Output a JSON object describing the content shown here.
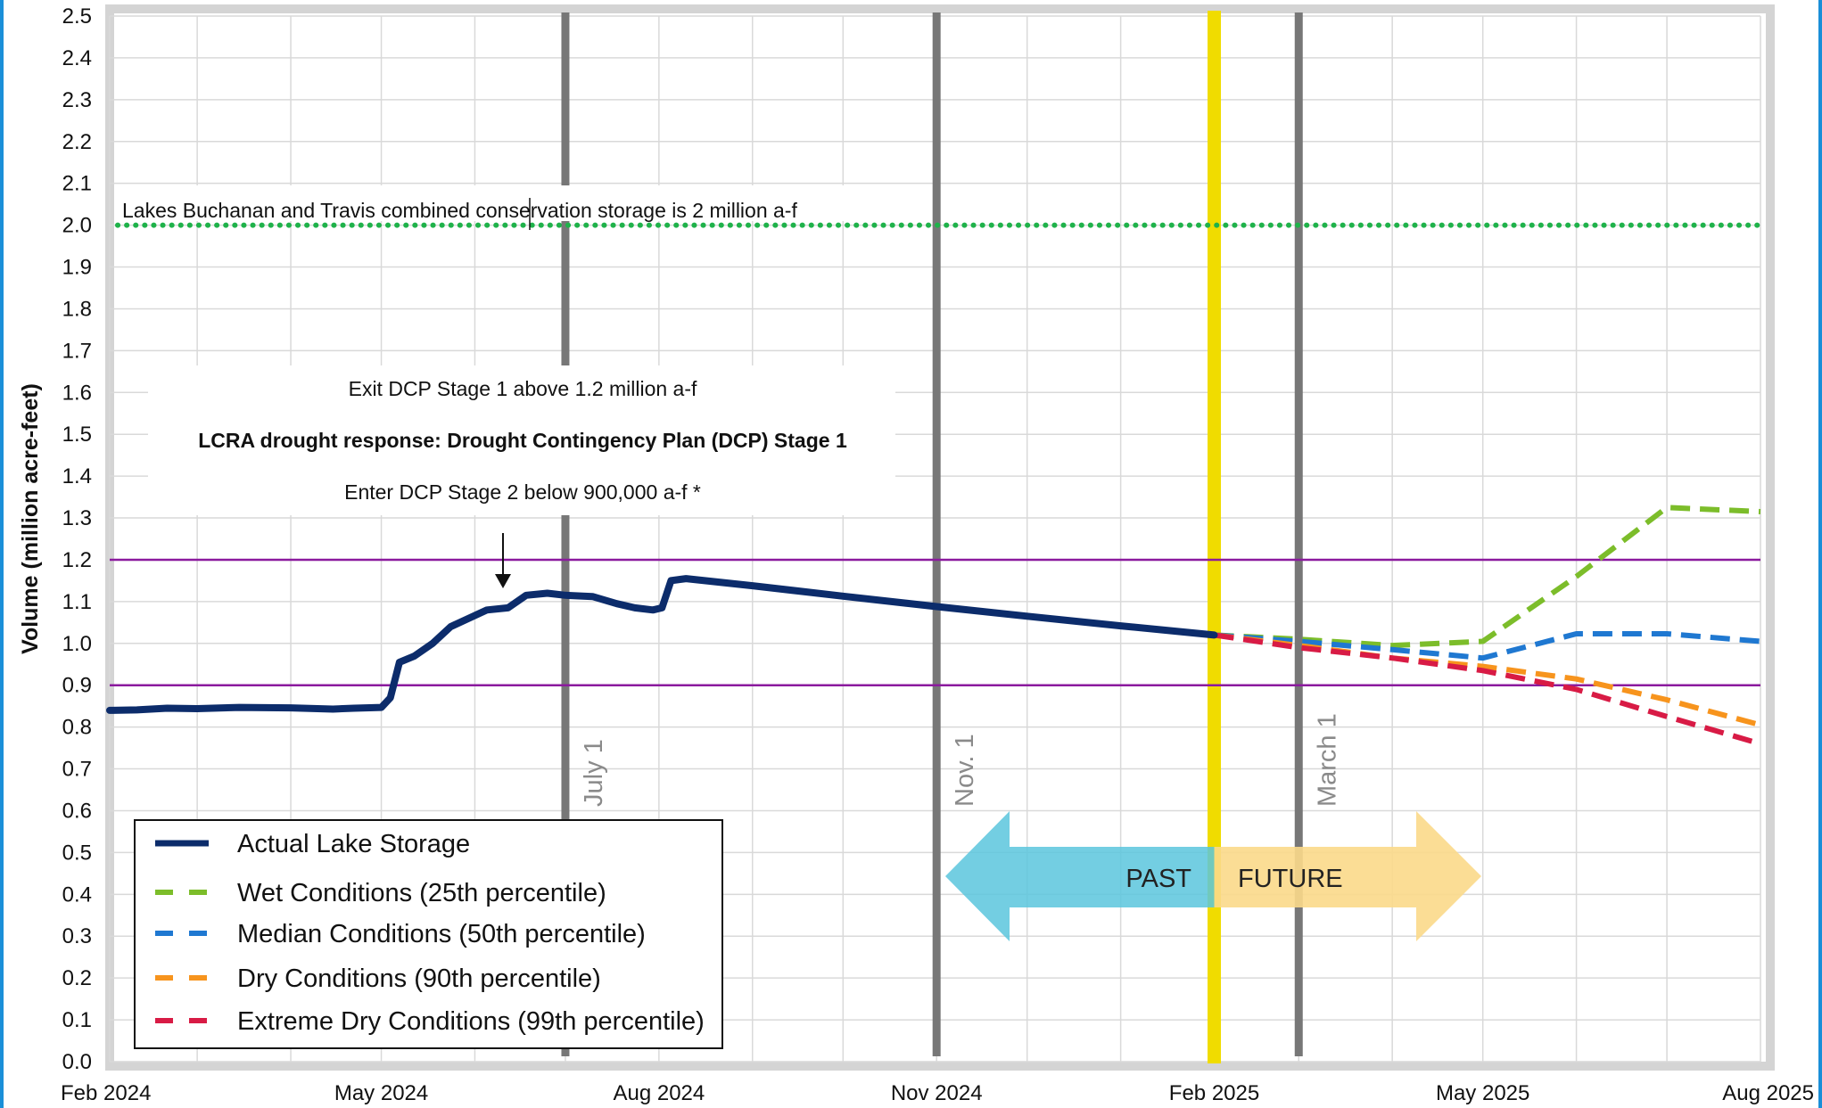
{
  "chart_data": {
    "type": "line",
    "ylabel": "Volume  (million acre-feet)",
    "ylim": [
      0,
      2.5
    ],
    "yticks": [
      "0.0",
      "0.1",
      "0.2",
      "0.3",
      "0.4",
      "0.5",
      "0.6",
      "0.7",
      "0.8",
      "0.9",
      "1.0",
      "1.1",
      "1.2",
      "1.3",
      "1.4",
      "1.5",
      "1.6",
      "1.7",
      "1.8",
      "1.9",
      "2.0",
      "2.1",
      "2.2",
      "2.3",
      "2.4",
      "2.5"
    ],
    "xlim": [
      "2024-02-01",
      "2025-08-01"
    ],
    "xticks": [
      {
        "date": "2024-02-01",
        "label": "Feb 2024"
      },
      {
        "date": "2024-05-01",
        "label": "May 2024"
      },
      {
        "date": "2024-08-01",
        "label": "Aug 2024"
      },
      {
        "date": "2024-11-01",
        "label": "Nov 2024"
      },
      {
        "date": "2025-02-01",
        "label": "Feb 2025"
      },
      {
        "date": "2025-05-01",
        "label": "May 2025"
      },
      {
        "date": "2025-08-01",
        "label": "Aug 2025"
      }
    ],
    "grid": true,
    "reference_lines": [
      {
        "value": 2.0,
        "label": "Lakes Buchanan and Travis combined conservation storage is 2 million a-f",
        "color": "#1fb24a"
      },
      {
        "value": 1.2,
        "label": "Exit DCP Stage 1 above 1.2 million a-f",
        "color": "#8b1a9e"
      },
      {
        "value": 0.9,
        "label": "Enter DCP Stage 2 below 900,000 a-f *",
        "color": "#8b1a9e"
      }
    ],
    "band_label": "LCRA drought response: Drought Contingency Plan (DCP) Stage 1",
    "vertical_markers": [
      {
        "date": "2024-07-01",
        "label": "July 1",
        "color": "#777777"
      },
      {
        "date": "2024-11-01",
        "label": "Nov. 1",
        "color": "#777777"
      },
      {
        "date": "2025-03-01",
        "label": "March 1",
        "color": "#777777"
      },
      {
        "date": "2025-02-01",
        "label": "",
        "color": "#f0dc00"
      }
    ],
    "past_label": "PAST",
    "future_label": "FUTURE",
    "series": [
      {
        "name": "Actual Lake Storage",
        "color": "#0c2c6b",
        "style": "solid",
        "points": [
          [
            "2024-02-01",
            0.84
          ],
          [
            "2024-02-10",
            0.841
          ],
          [
            "2024-02-20",
            0.845
          ],
          [
            "2024-03-01",
            0.844
          ],
          [
            "2024-03-15",
            0.847
          ],
          [
            "2024-04-01",
            0.846
          ],
          [
            "2024-04-15",
            0.843
          ],
          [
            "2024-04-22",
            0.845
          ],
          [
            "2024-05-01",
            0.847
          ],
          [
            "2024-05-04",
            0.87
          ],
          [
            "2024-05-07",
            0.955
          ],
          [
            "2024-05-12",
            0.97
          ],
          [
            "2024-05-18",
            1.0
          ],
          [
            "2024-05-24",
            1.04
          ],
          [
            "2024-05-30",
            1.06
          ],
          [
            "2024-06-05",
            1.08
          ],
          [
            "2024-06-12",
            1.085
          ],
          [
            "2024-06-18",
            1.115
          ],
          [
            "2024-06-25",
            1.12
          ],
          [
            "2024-07-01",
            1.115
          ],
          [
            "2024-07-10",
            1.112
          ],
          [
            "2024-07-18",
            1.095
          ],
          [
            "2024-07-24",
            1.085
          ],
          [
            "2024-07-30",
            1.08
          ],
          [
            "2024-08-02",
            1.085
          ],
          [
            "2024-08-05",
            1.15
          ],
          [
            "2024-08-10",
            1.155
          ],
          [
            "2024-09-01",
            1.138
          ],
          [
            "2024-10-01",
            1.113
          ],
          [
            "2024-11-01",
            1.088
          ],
          [
            "2024-12-01",
            1.065
          ],
          [
            "2025-01-01",
            1.042
          ],
          [
            "2025-02-01",
            1.02
          ]
        ]
      },
      {
        "name": "Wet Conditions (25th percentile)",
        "color": "#7cbd2a",
        "style": "dashed",
        "points": [
          [
            "2025-02-01",
            1.02
          ],
          [
            "2025-03-01",
            1.01
          ],
          [
            "2025-04-01",
            0.995
          ],
          [
            "2025-05-01",
            1.005
          ],
          [
            "2025-06-01",
            1.16
          ],
          [
            "2025-07-01",
            1.325
          ],
          [
            "2025-08-01",
            1.315
          ]
        ]
      },
      {
        "name": "Median Conditions (50th percentile)",
        "color": "#1f78d1",
        "style": "dashed",
        "points": [
          [
            "2025-02-01",
            1.02
          ],
          [
            "2025-03-01",
            1.005
          ],
          [
            "2025-04-01",
            0.985
          ],
          [
            "2025-05-01",
            0.965
          ],
          [
            "2025-06-01",
            1.023
          ],
          [
            "2025-07-01",
            1.023
          ],
          [
            "2025-08-01",
            1.005
          ]
        ]
      },
      {
        "name": "Dry Conditions (90th percentile)",
        "color": "#f7941d",
        "style": "dashed",
        "points": [
          [
            "2025-02-01",
            1.02
          ],
          [
            "2025-03-01",
            0.995
          ],
          [
            "2025-04-01",
            0.965
          ],
          [
            "2025-05-01",
            0.945
          ],
          [
            "2025-06-01",
            0.915
          ],
          [
            "2025-07-01",
            0.865
          ],
          [
            "2025-08-01",
            0.805
          ]
        ]
      },
      {
        "name": "Extreme Dry Conditions (99th percentile)",
        "color": "#d81b45",
        "style": "dashed",
        "points": [
          [
            "2025-02-01",
            1.02
          ],
          [
            "2025-03-01",
            0.99
          ],
          [
            "2025-04-01",
            0.965
          ],
          [
            "2025-05-01",
            0.935
          ],
          [
            "2025-06-01",
            0.89
          ],
          [
            "2025-07-01",
            0.825
          ],
          [
            "2025-08-01",
            0.76
          ]
        ]
      }
    ]
  }
}
